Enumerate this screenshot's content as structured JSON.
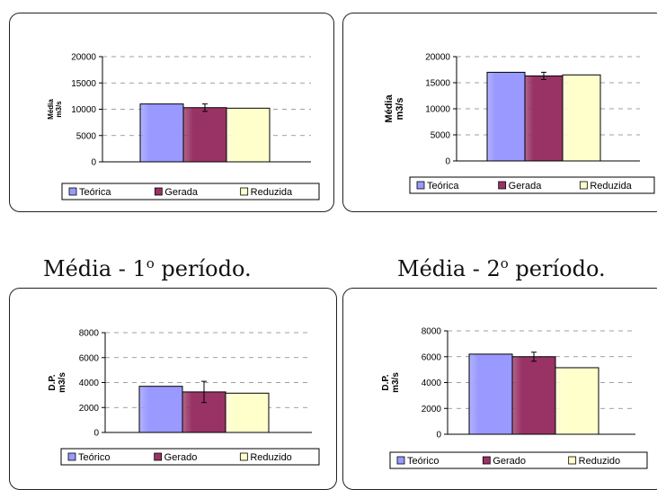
{
  "captions": [
    {
      "text_before": "Média - 1",
      "sup": "o",
      "text_after": " período."
    },
    {
      "text_before": "Média - 2",
      "sup": "o",
      "text_after": " período."
    }
  ],
  "colors": {
    "series": [
      "#9999ff",
      "#993366",
      "#ffffcc"
    ],
    "axis": "#000000",
    "grid": "#808080"
  },
  "chart_data": [
    {
      "type": "bar",
      "ylabel_lines": [
        "Média",
        "m3/s"
      ],
      "categories": [
        "Teórica",
        "Gerada",
        "Reduzida"
      ],
      "values": [
        11000,
        10300,
        10200
      ],
      "error_bars": [
        null,
        700,
        null
      ],
      "ylim": [
        0,
        20000
      ],
      "yticks": [
        "0",
        "5000",
        "10000",
        "15000",
        "20000"
      ],
      "legend": [
        "Teórica",
        "Gerada",
        "Reduzida"
      ],
      "legend_position": "bottom",
      "grid": true
    },
    {
      "type": "bar",
      "ylabel_lines": [
        "Média",
        "m3/s"
      ],
      "categories": [
        "Teórica",
        "Gerada",
        "Reduzida"
      ],
      "values": [
        17000,
        16300,
        16500
      ],
      "error_bars": [
        null,
        700,
        null
      ],
      "ylim": [
        0,
        20000
      ],
      "yticks": [
        "0",
        "5000",
        "10000",
        "15000",
        "20000"
      ],
      "legend": [
        "Teórica",
        "Gerada",
        "Reduzida"
      ],
      "legend_position": "bottom",
      "grid": true
    },
    {
      "type": "bar",
      "ylabel_lines": [
        "D.P.",
        "m3/s"
      ],
      "categories": [
        "Teórico",
        "Gerado",
        "Reduzido"
      ],
      "values": [
        3700,
        3250,
        3150
      ],
      "error_bars": [
        null,
        850,
        null
      ],
      "ylim": [
        0,
        8000
      ],
      "yticks": [
        "0",
        "2000",
        "4000",
        "6000",
        "8000"
      ],
      "legend": [
        "Teórico",
        "Gerado",
        "Reduzido"
      ],
      "legend_position": "bottom",
      "grid": true
    },
    {
      "type": "bar",
      "ylabel_lines": [
        "D.P.",
        "m3/s"
      ],
      "categories": [
        "Teórico",
        "Gerado",
        "Reduzido"
      ],
      "values": [
        6200,
        6000,
        5150
      ],
      "error_bars": [
        null,
        350,
        null
      ],
      "ylim": [
        0,
        8000
      ],
      "yticks": [
        "0",
        "2000",
        "4000",
        "6000",
        "8000"
      ],
      "legend": [
        "Teórico",
        "Gerado",
        "Reduzido"
      ],
      "legend_position": "bottom",
      "grid": true
    }
  ]
}
